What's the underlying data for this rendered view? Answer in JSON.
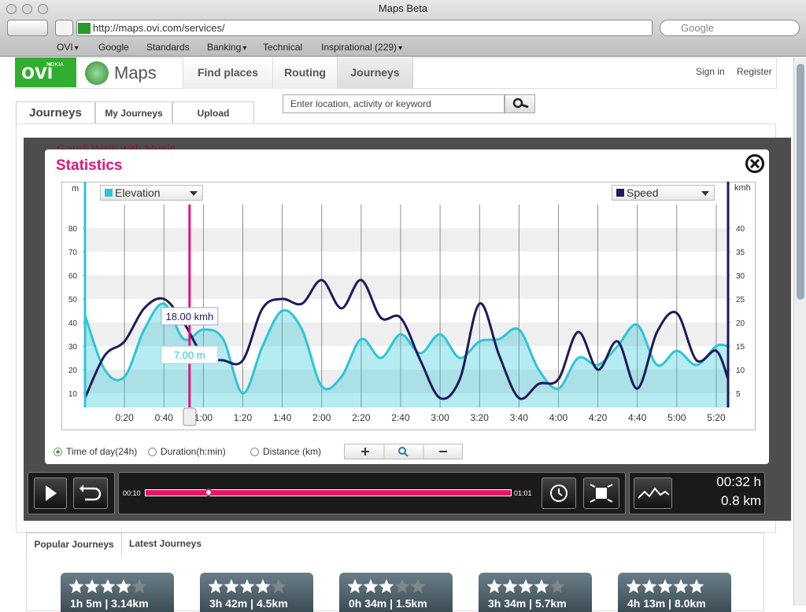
{
  "browser": {
    "title": "Maps Beta",
    "url": "http://maps.ovi.com/services/",
    "search": "Google",
    "bookmarks": [
      "OVI",
      "Google",
      "Standards",
      "Banking",
      "Technical",
      "Inspirational (229)"
    ]
  },
  "header": {
    "logo": "ovi",
    "brand": "NOKIA",
    "app": "Maps",
    "nav": [
      "Find places",
      "Routing",
      "Journeys"
    ],
    "links": [
      "Sign in",
      "Register"
    ]
  },
  "tabs": [
    "Journeys",
    "My Journeys",
    "Upload"
  ],
  "search_placeholder": "Enter location, activity or keyword",
  "journey_title": "Gaudi Walk with Music",
  "statistics": {
    "title": "Statistics",
    "chart": {
      "type": "line",
      "y_unit": "m",
      "y2_unit": "kmh",
      "x": [
        0,
        10,
        20,
        30,
        40,
        50,
        60,
        70,
        80,
        90,
        100,
        110,
        120,
        130,
        140,
        150,
        160,
        170,
        180,
        190,
        200,
        210,
        220,
        230,
        240,
        250,
        260,
        270,
        280,
        290,
        300,
        310,
        320,
        326
      ],
      "series": [
        {
          "name": "Elevation",
          "color": "#2cc6d6",
          "values": [
            43,
            20,
            17,
            37,
            48,
            33,
            37,
            33,
            10,
            30,
            45,
            37,
            13,
            17,
            33,
            25,
            35,
            27,
            35,
            25,
            32,
            33,
            37,
            20,
            12,
            25,
            22,
            30,
            39,
            22,
            28,
            22,
            30,
            30
          ]
        },
        {
          "name": "Speed",
          "color": "#1f1a5c",
          "axis": "y2",
          "values": [
            4,
            13,
            16,
            23,
            25,
            20,
            13,
            12,
            12,
            23,
            25,
            24,
            29,
            23,
            29,
            21,
            21,
            12,
            4,
            8,
            24,
            13,
            4,
            7,
            8,
            18,
            10,
            16,
            6,
            18,
            22,
            12,
            14,
            8
          ]
        }
      ],
      "xlim": [
        0,
        326
      ],
      "xticks": [
        {
          "value": 20,
          "label": "0:20"
        },
        {
          "value": 40,
          "label": "0:40"
        },
        {
          "value": 60,
          "label": "1:00"
        },
        {
          "value": 80,
          "label": "1:20"
        },
        {
          "value": 100,
          "label": "1:40"
        },
        {
          "value": 120,
          "label": "2:00"
        },
        {
          "value": 140,
          "label": "2:20"
        },
        {
          "value": 160,
          "label": "2:40"
        },
        {
          "value": 180,
          "label": "3:00"
        },
        {
          "value": 200,
          "label": "3:20"
        },
        {
          "value": 220,
          "label": "3:40"
        },
        {
          "value": 240,
          "label": "4:00"
        },
        {
          "value": 260,
          "label": "4:20"
        },
        {
          "value": 280,
          "label": "4:40"
        },
        {
          "value": 300,
          "label": "5:00"
        },
        {
          "value": 320,
          "label": "5:20"
        }
      ],
      "ylim": [
        4,
        90
      ],
      "yticks": [
        10,
        20,
        30,
        40,
        50,
        60,
        70,
        80
      ],
      "y2lim": [
        2,
        45
      ],
      "y2ticks": [
        5,
        10,
        15,
        20,
        25,
        30,
        35,
        40
      ],
      "cursor": {
        "x": 53,
        "speed_label": "18.00 kmh",
        "elevation_label": "7.00 m"
      }
    },
    "modes": [
      "Time of day(24h)",
      "Duration(h:min)",
      "Distance (km)"
    ],
    "selected_mode": 0
  },
  "player": {
    "start": "00:10",
    "end": "01:01",
    "time": "00:32 h",
    "distance": "0.8 km"
  },
  "journeys": {
    "tabs": [
      "Popular Journeys",
      "Latest Journeys"
    ],
    "items": [
      {
        "rating": 4,
        "stats": "1h 5m | 3.14km"
      },
      {
        "rating": 4,
        "stats": "3h 42m | 4.5km"
      },
      {
        "rating": 3,
        "stats": "0h 34m | 1.5km"
      },
      {
        "rating": 4,
        "stats": "3h 34m | 5.7km"
      },
      {
        "rating": 5,
        "stats": "4h 13m | 8.0km"
      }
    ]
  }
}
